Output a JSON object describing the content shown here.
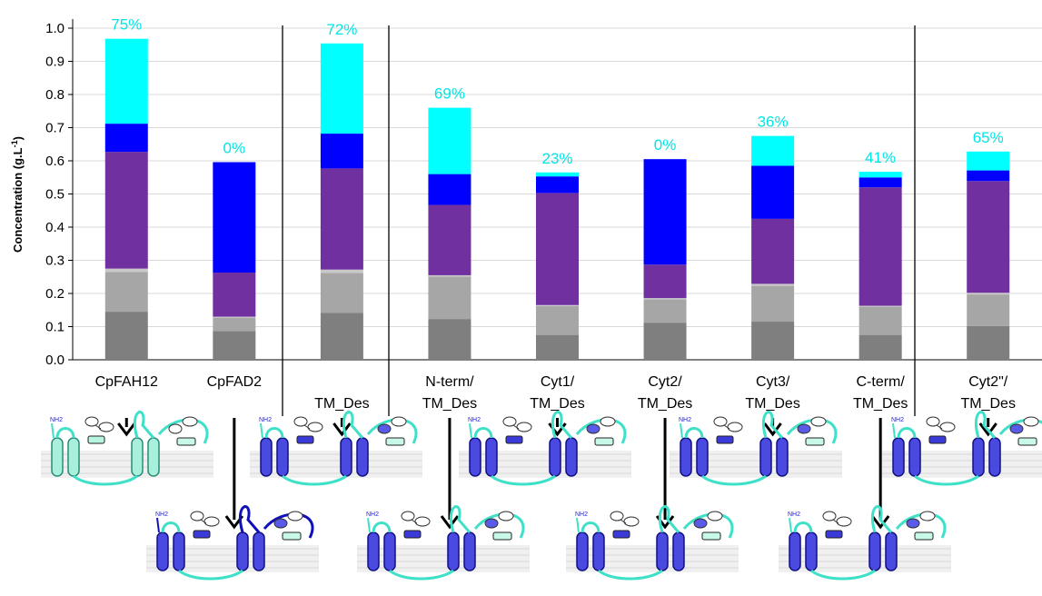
{
  "chart_data": {
    "type": "bar",
    "stacked": true,
    "ylabel": "Concentration (g.L-1)",
    "ylim": [
      0,
      1.0
    ],
    "yticks": [
      "0.0",
      "0.1",
      "0.2",
      "0.3",
      "0.4",
      "0.5",
      "0.6",
      "0.7",
      "0.8",
      "0.9",
      "1.0"
    ],
    "categories": [
      [
        "CpFAH12"
      ],
      [
        "CpFAD2"
      ],
      [
        "",
        "TM_Des"
      ],
      [
        "N-term/",
        "TM_Des"
      ],
      [
        "Cyt1/",
        "TM_Des"
      ],
      [
        "Cyt2/",
        "TM_Des"
      ],
      [
        "Cyt3/",
        "TM_Des"
      ],
      [
        "C-term/",
        "TM_Des"
      ],
      [
        "Cyt2\"/",
        "TM_Des"
      ]
    ],
    "percent_labels": [
      "75%",
      "0%",
      "72%",
      "69%",
      "23%",
      "0%",
      "36%",
      "41%",
      "65%"
    ],
    "series": [
      {
        "color": "#7f7f7f",
        "values": [
          0.145,
          0.087,
          0.142,
          0.123,
          0.075,
          0.112,
          0.115,
          0.075,
          0.102
        ]
      },
      {
        "color": "#a6a6a6",
        "values": [
          0.12,
          0.04,
          0.12,
          0.128,
          0.087,
          0.07,
          0.108,
          0.085,
          0.095
        ]
      },
      {
        "color": "#c8c8c8",
        "values": [
          0.01,
          0.003,
          0.01,
          0.004,
          0.003,
          0.004,
          0.006,
          0.003,
          0.005
        ]
      },
      {
        "color": "#7030a0",
        "values": [
          0.352,
          0.133,
          0.305,
          0.212,
          0.338,
          0.101,
          0.196,
          0.357,
          0.337
        ]
      },
      {
        "color": "#0000ff",
        "values": [
          0.085,
          0.333,
          0.105,
          0.093,
          0.05,
          0.318,
          0.16,
          0.03,
          0.032
        ]
      },
      {
        "color": "#00ffff",
        "values": [
          0.256,
          0.0,
          0.272,
          0.2,
          0.012,
          0.0,
          0.09,
          0.017,
          0.057
        ]
      }
    ],
    "separators_after": [
      2,
      8
    ],
    "pct_color": "#00e6e6",
    "arrows": [
      {
        "category": 0,
        "short": true
      },
      {
        "category": 1,
        "short": false
      },
      {
        "category": 2,
        "short": true
      },
      {
        "category": 3,
        "short": false
      },
      {
        "category": 4,
        "short": true
      },
      {
        "category": 5,
        "short": false
      },
      {
        "category": 6,
        "short": true
      },
      {
        "category": 7,
        "short": false
      },
      {
        "category": 8,
        "short": true
      }
    ],
    "diagrams": [
      {
        "row": 1,
        "center": 140,
        "label": "NH2",
        "variant": "wild-fah"
      },
      {
        "row": 1,
        "center": 370,
        "label": "NH2",
        "variant": "tm"
      },
      {
        "row": 1,
        "center": 600,
        "label": "NH2",
        "variant": "tm"
      },
      {
        "row": 1,
        "center": 832,
        "label": "NH2",
        "variant": "tm"
      },
      {
        "row": 1,
        "center": 1066,
        "label": "NH2",
        "variant": "tm"
      },
      {
        "row": 2,
        "center": 256,
        "label": "NH2",
        "variant": "wild-fad"
      },
      {
        "row": 2,
        "center": 488,
        "label": "NH2",
        "variant": "tm"
      },
      {
        "row": 2,
        "center": 718,
        "label": "NH2",
        "variant": "tm"
      },
      {
        "row": 2,
        "center": 952,
        "label": "NH2",
        "variant": "tm"
      }
    ]
  }
}
